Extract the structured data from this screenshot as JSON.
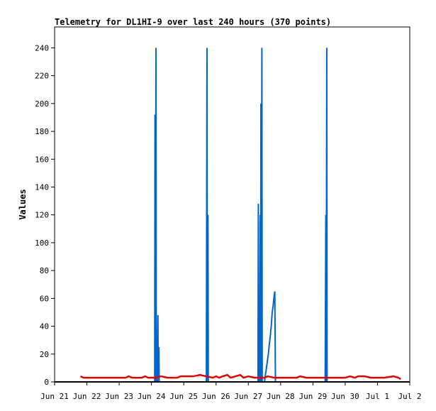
{
  "chart_data": {
    "type": "line",
    "title": "Telemetry for DL1HI-9 over last 240 hours (370 points)",
    "xlabel": "",
    "ylabel": "Values",
    "ylim": [
      0,
      255
    ],
    "xlim": [
      0,
      11
    ],
    "yticks": [
      0,
      20,
      40,
      60,
      80,
      100,
      120,
      140,
      160,
      180,
      200,
      220,
      240
    ],
    "xticks": [
      {
        "x": 0,
        "label": "Jun 21"
      },
      {
        "x": 1,
        "label": "Jun 22"
      },
      {
        "x": 2,
        "label": "Jun 23"
      },
      {
        "x": 3,
        "label": "Jun 24"
      },
      {
        "x": 4,
        "label": "Jun 25"
      },
      {
        "x": 5,
        "label": "Jun 26"
      },
      {
        "x": 6,
        "label": "Jun 27"
      },
      {
        "x": 7,
        "label": "Jun 28"
      },
      {
        "x": 8,
        "label": "Jun 29"
      },
      {
        "x": 9,
        "label": "Jun 30"
      },
      {
        "x": 10,
        "label": "Jul 1"
      },
      {
        "x": 11,
        "label": "Jul 2"
      }
    ],
    "grid": false,
    "series": [
      {
        "color": "#0066cc",
        "points": [
          [
            0.8,
            0
          ],
          [
            3.1,
            0
          ],
          [
            3.11,
            192
          ],
          [
            3.12,
            0
          ],
          [
            3.14,
            240
          ],
          [
            3.15,
            0
          ],
          [
            3.17,
            32
          ],
          [
            3.18,
            0
          ],
          [
            3.2,
            48
          ],
          [
            3.21,
            0
          ],
          [
            3.23,
            25
          ],
          [
            3.24,
            0
          ],
          [
            4.7,
            0
          ],
          [
            4.72,
            240
          ],
          [
            4.73,
            0
          ],
          [
            4.75,
            120
          ],
          [
            4.76,
            0
          ],
          [
            6.3,
            0
          ],
          [
            6.31,
            128
          ],
          [
            6.32,
            0
          ],
          [
            6.34,
            40
          ],
          [
            6.35,
            0
          ],
          [
            6.37,
            120
          ],
          [
            6.38,
            0
          ],
          [
            6.39,
            200
          ],
          [
            6.4,
            0
          ],
          [
            6.42,
            240
          ],
          [
            6.43,
            0
          ],
          [
            6.5,
            0
          ],
          [
            6.53,
            5
          ],
          [
            6.56,
            10
          ],
          [
            6.59,
            15
          ],
          [
            6.62,
            20
          ],
          [
            6.65,
            27
          ],
          [
            6.68,
            33
          ],
          [
            6.71,
            40
          ],
          [
            6.74,
            50
          ],
          [
            6.77,
            55
          ],
          [
            6.8,
            62
          ],
          [
            6.82,
            65
          ],
          [
            6.84,
            0
          ],
          [
            8.38,
            0
          ],
          [
            8.4,
            120
          ],
          [
            8.41,
            0
          ],
          [
            8.43,
            240
          ],
          [
            8.44,
            0
          ],
          [
            10.72,
            0
          ]
        ]
      },
      {
        "color": "#e00000",
        "points": [
          [
            0.8,
            4
          ],
          [
            0.9,
            3
          ],
          [
            1.5,
            3
          ],
          [
            2.2,
            3
          ],
          [
            2.3,
            4
          ],
          [
            2.4,
            3
          ],
          [
            2.7,
            3
          ],
          [
            2.8,
            4
          ],
          [
            2.9,
            3
          ],
          [
            3.1,
            3
          ],
          [
            3.3,
            4
          ],
          [
            3.5,
            3
          ],
          [
            3.8,
            3
          ],
          [
            3.9,
            4
          ],
          [
            4.3,
            4
          ],
          [
            4.5,
            5
          ],
          [
            4.7,
            4
          ],
          [
            4.9,
            3
          ],
          [
            5.0,
            4
          ],
          [
            5.1,
            3
          ],
          [
            5.2,
            4
          ],
          [
            5.35,
            5
          ],
          [
            5.45,
            3
          ],
          [
            5.6,
            4
          ],
          [
            5.75,
            5
          ],
          [
            5.85,
            3
          ],
          [
            6.0,
            4
          ],
          [
            6.2,
            3
          ],
          [
            6.5,
            3
          ],
          [
            6.6,
            4
          ],
          [
            6.8,
            3
          ],
          [
            7.0,
            3
          ],
          [
            7.5,
            3
          ],
          [
            7.6,
            4
          ],
          [
            7.8,
            3
          ],
          [
            8.2,
            3
          ],
          [
            9.0,
            3
          ],
          [
            9.15,
            4
          ],
          [
            9.3,
            3
          ],
          [
            9.4,
            4
          ],
          [
            9.6,
            4
          ],
          [
            9.8,
            3
          ],
          [
            10.0,
            3
          ],
          [
            10.2,
            3
          ],
          [
            10.5,
            4
          ],
          [
            10.65,
            3
          ],
          [
            10.72,
            2
          ]
        ]
      }
    ]
  }
}
